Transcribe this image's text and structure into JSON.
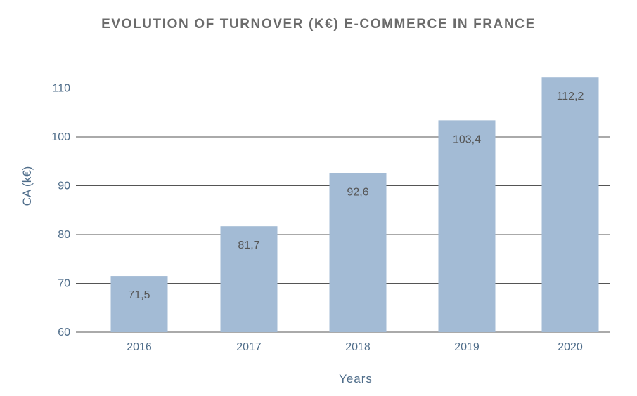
{
  "chart_data": {
    "type": "bar",
    "title": "EVOLUTION OF TURNOVER (K€) E-COMMERCE IN FRANCE",
    "xlabel": "Years",
    "ylabel": "CA (k€)",
    "categories": [
      "2016",
      "2017",
      "2018",
      "2019",
      "2020"
    ],
    "values": [
      71.5,
      81.7,
      92.6,
      103.4,
      112.2
    ],
    "value_labels": [
      "71,5",
      "81,7",
      "92,6",
      "103,4",
      "112,2"
    ],
    "ylim": [
      60,
      110
    ],
    "yticks": [
      60,
      70,
      80,
      90,
      100,
      110
    ],
    "grid": true,
    "legend": "none"
  },
  "colors": {
    "bar": "#a3bbd5",
    "grid": "#555555",
    "tick_text": "#4f6d8a",
    "bar_label_text": "#555555",
    "title_text": "#6b6b6b"
  }
}
